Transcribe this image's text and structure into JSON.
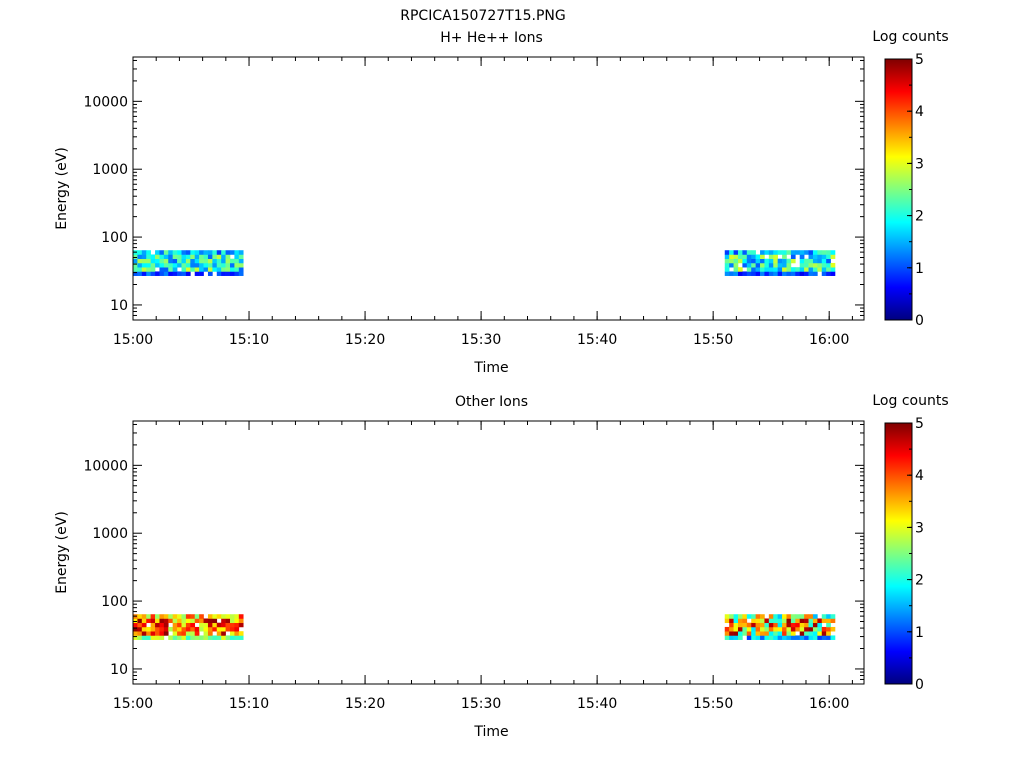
{
  "figure_title": "RPCICA150727T15.PNG",
  "chart_data": [
    {
      "type": "heatmap",
      "title": "H+ He++ Ions",
      "xlabel": "Time",
      "ylabel": "Energy (eV)",
      "x_ticks": [
        "15:00",
        "15:10",
        "15:20",
        "15:30",
        "15:40",
        "15:50",
        "16:00"
      ],
      "xlim": [
        "15:00",
        "16:03"
      ],
      "y_scale": "log",
      "y_ticks": [
        "10",
        "100",
        "1000",
        "10000"
      ],
      "ylim": [
        6,
        45000
      ],
      "colorbar": {
        "label": "Log counts",
        "range": [
          0,
          5
        ],
        "ticks": [
          "0",
          "1",
          "2",
          "3",
          "4",
          "5"
        ],
        "colormap": "jet"
      },
      "data_blocks": [
        {
          "time_start": "15:00",
          "time_end": "15:09.5",
          "energy_min": 27,
          "energy_max": 64,
          "log_counts_range": [
            0,
            3
          ]
        },
        {
          "time_start": "15:51",
          "time_end": "16:00.5",
          "energy_min": 27,
          "energy_max": 64,
          "log_counts_range": [
            0,
            3
          ]
        }
      ],
      "grid": false
    },
    {
      "type": "heatmap",
      "title": "Other Ions",
      "xlabel": "Time",
      "ylabel": "Energy (eV)",
      "x_ticks": [
        "15:00",
        "15:10",
        "15:20",
        "15:30",
        "15:40",
        "15:50",
        "16:00"
      ],
      "xlim": [
        "15:00",
        "16:03"
      ],
      "y_scale": "log",
      "y_ticks": [
        "10",
        "100",
        "1000",
        "10000"
      ],
      "ylim": [
        6,
        45000
      ],
      "colorbar": {
        "label": "Log counts",
        "range": [
          0,
          5
        ],
        "ticks": [
          "0",
          "1",
          "2",
          "3",
          "4",
          "5"
        ],
        "colormap": "jet"
      },
      "data_blocks": [
        {
          "time_start": "15:00",
          "time_end": "15:09.5",
          "energy_min": 27,
          "energy_max": 64,
          "log_counts_range": [
            1.5,
            5
          ]
        },
        {
          "time_start": "15:51",
          "time_end": "16:00.5",
          "energy_min": 27,
          "energy_max": 64,
          "log_counts_range": [
            0,
            5
          ]
        }
      ],
      "grid": false
    }
  ]
}
